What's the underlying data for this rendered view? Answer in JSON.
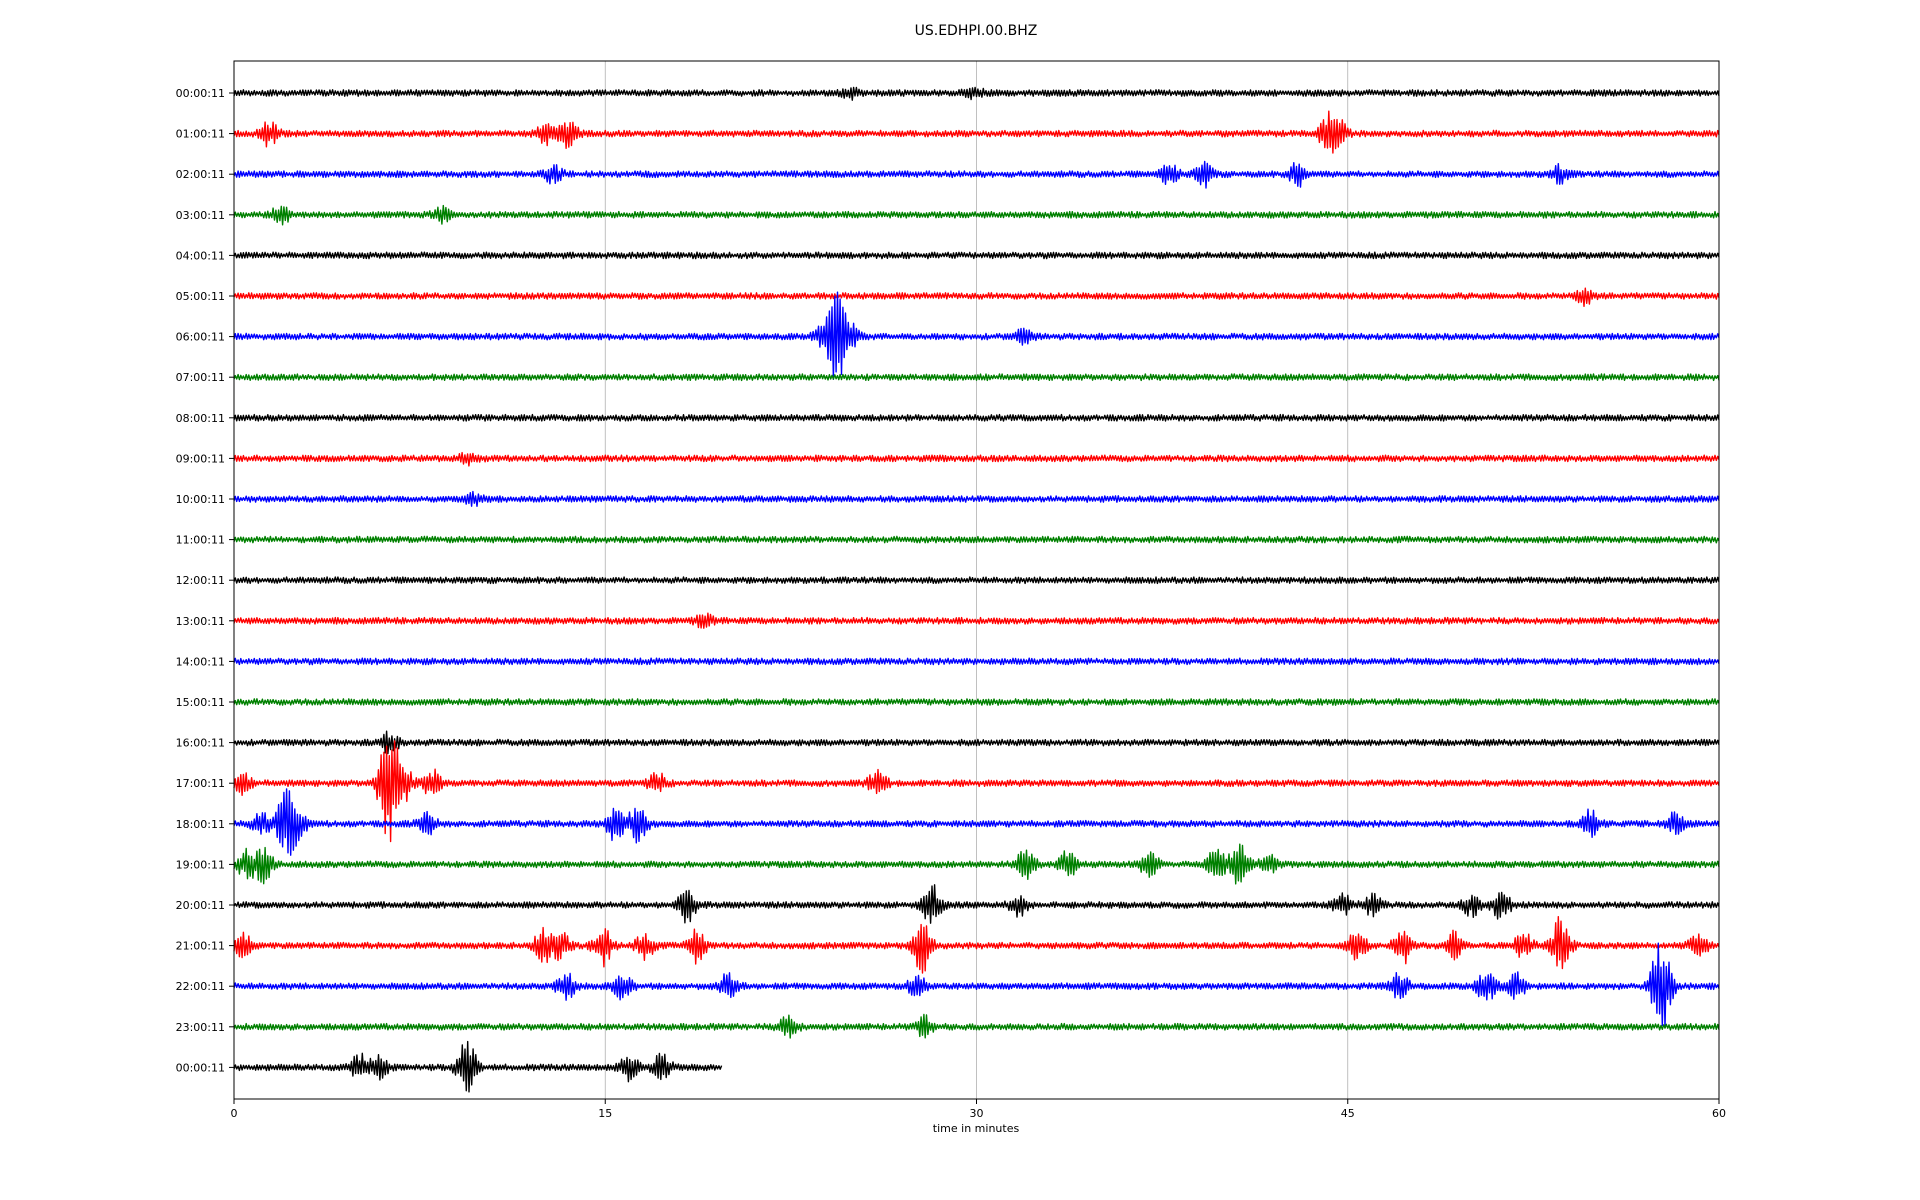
{
  "chart_data": {
    "type": "line",
    "title": "US.EDHPI.00.BHZ",
    "xlabel": "time in minutes",
    "ylabel": "",
    "xlim": [
      0,
      60
    ],
    "xticks": [
      "0",
      "15",
      "30",
      "45",
      "60"
    ],
    "xtick_values": [
      0,
      15,
      30,
      45,
      60
    ],
    "grid": "vertical lines at 15, 30, 45",
    "colors": [
      "#000000",
      "#ff0000",
      "#0000ff",
      "#008000"
    ],
    "series": [
      {
        "label": "00:00:11",
        "end": 60,
        "events": [
          [
            24.9,
            1.5
          ],
          [
            29.9,
            1.6
          ]
        ]
      },
      {
        "label": "01:00:11",
        "end": 60,
        "events": [
          [
            1.4,
            3.5
          ],
          [
            12.6,
            3
          ],
          [
            13.5,
            4
          ],
          [
            44.2,
            5
          ],
          [
            44.6,
            4
          ]
        ]
      },
      {
        "label": "02:00:11",
        "end": 60,
        "events": [
          [
            12.9,
            2.5
          ],
          [
            37.8,
            3
          ],
          [
            39.2,
            3.5
          ],
          [
            43.0,
            3.5
          ],
          [
            53.6,
            2.5
          ]
        ]
      },
      {
        "label": "03:00:11",
        "end": 60,
        "events": [
          [
            1.9,
            2.5
          ],
          [
            8.4,
            2
          ]
        ]
      },
      {
        "label": "04:00:11",
        "end": 60,
        "events": []
      },
      {
        "label": "05:00:11",
        "end": 60,
        "events": [
          [
            54.6,
            2.5
          ]
        ]
      },
      {
        "label": "06:00:11",
        "end": 60,
        "events": [
          [
            23.8,
            3
          ],
          [
            24.4,
            16
          ],
          [
            24.9,
            4
          ],
          [
            31.9,
            2
          ]
        ]
      },
      {
        "label": "07:00:11",
        "end": 60,
        "events": []
      },
      {
        "label": "08:00:11",
        "end": 60,
        "events": []
      },
      {
        "label": "09:00:11",
        "end": 60,
        "events": [
          [
            9.5,
            1.8
          ]
        ]
      },
      {
        "label": "10:00:11",
        "end": 60,
        "events": [
          [
            9.6,
            2
          ]
        ]
      },
      {
        "label": "11:00:11",
        "end": 60,
        "events": []
      },
      {
        "label": "12:00:11",
        "end": 60,
        "events": []
      },
      {
        "label": "13:00:11",
        "end": 60,
        "events": [
          [
            19.0,
            1.8
          ]
        ]
      },
      {
        "label": "14:00:11",
        "end": 60,
        "events": []
      },
      {
        "label": "15:00:11",
        "end": 60,
        "events": []
      },
      {
        "label": "16:00:11",
        "end": 60,
        "events": [
          [
            6.3,
            3
          ]
        ]
      },
      {
        "label": "17:00:11",
        "end": 60,
        "events": [
          [
            0.3,
            3
          ],
          [
            6.1,
            8
          ],
          [
            6.4,
            14
          ],
          [
            6.9,
            4
          ],
          [
            8.0,
            4
          ],
          [
            17.1,
            3
          ],
          [
            26.0,
            3.5
          ]
        ]
      },
      {
        "label": "18:00:11",
        "end": 60,
        "events": [
          [
            1.1,
            3
          ],
          [
            2.1,
            11
          ],
          [
            2.6,
            4
          ],
          [
            7.8,
            3
          ],
          [
            15.4,
            5
          ],
          [
            16.3,
            6
          ],
          [
            54.8,
            4
          ],
          [
            58.2,
            3
          ]
        ]
      },
      {
        "label": "19:00:11",
        "end": 60,
        "events": [
          [
            0.5,
            4
          ],
          [
            1.2,
            5
          ],
          [
            32.0,
            5
          ],
          [
            33.7,
            4
          ],
          [
            37.0,
            4
          ],
          [
            39.7,
            6
          ],
          [
            40.6,
            6
          ],
          [
            41.8,
            3
          ]
        ]
      },
      {
        "label": "20:00:11",
        "end": 60,
        "events": [
          [
            18.3,
            5
          ],
          [
            28.2,
            6
          ],
          [
            31.7,
            3
          ],
          [
            44.8,
            3
          ],
          [
            46.0,
            3
          ],
          [
            50.0,
            3
          ],
          [
            51.2,
            4
          ]
        ]
      },
      {
        "label": "21:00:11",
        "end": 60,
        "events": [
          [
            0.4,
            3.5
          ],
          [
            12.5,
            5
          ],
          [
            13.2,
            4
          ],
          [
            14.9,
            6
          ],
          [
            16.6,
            4
          ],
          [
            18.7,
            5
          ],
          [
            27.8,
            8
          ],
          [
            45.4,
            5
          ],
          [
            47.2,
            6
          ],
          [
            49.3,
            4
          ],
          [
            52.1,
            4
          ],
          [
            53.6,
            9
          ],
          [
            59.2,
            4
          ]
        ]
      },
      {
        "label": "22:00:11",
        "end": 60,
        "events": [
          [
            13.4,
            4
          ],
          [
            15.7,
            4
          ],
          [
            20.0,
            4
          ],
          [
            27.6,
            3
          ],
          [
            47.1,
            4
          ],
          [
            50.6,
            5
          ],
          [
            51.8,
            4
          ],
          [
            57.6,
            11
          ],
          [
            57.8,
            6
          ]
        ]
      },
      {
        "label": "23:00:11",
        "end": 60,
        "events": [
          [
            22.4,
            3.5
          ],
          [
            27.9,
            3
          ]
        ]
      },
      {
        "label": "00:00:11",
        "end": 19.7,
        "events": [
          [
            5.1,
            4
          ],
          [
            5.9,
            3.5
          ],
          [
            9.4,
            10
          ],
          [
            16.0,
            4
          ],
          [
            17.3,
            4
          ]
        ]
      }
    ]
  }
}
